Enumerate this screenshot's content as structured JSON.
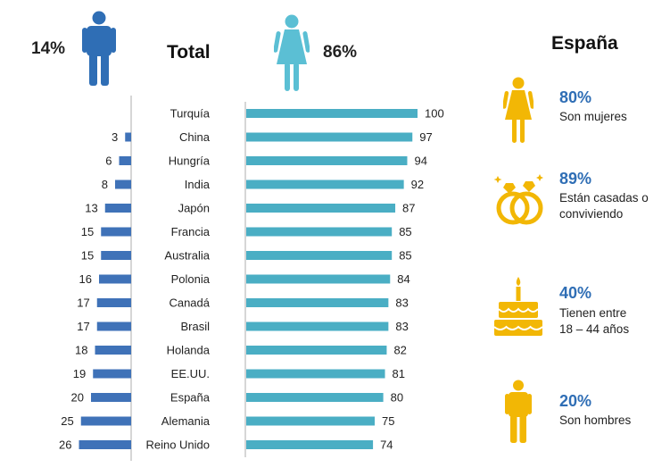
{
  "header": {
    "men_percent": "14%",
    "title": "Total",
    "women_percent": "86%"
  },
  "chart_data": {
    "type": "bar",
    "title": "Total",
    "categories": [
      "Turquía",
      "China",
      "Hungría",
      "India",
      "Japón",
      "Francia",
      "Australia",
      "Polonia",
      "Canadá",
      "Brasil",
      "Holanda",
      "EE.UU.",
      "España",
      "Alemania",
      "Reino Unido"
    ],
    "series": [
      {
        "name": "Hombres",
        "values": [
          null,
          3,
          6,
          8,
          13,
          15,
          15,
          16,
          17,
          17,
          18,
          19,
          20,
          25,
          26
        ]
      },
      {
        "name": "Mujeres",
        "values": [
          100,
          97,
          94,
          92,
          87,
          85,
          85,
          84,
          83,
          83,
          82,
          81,
          80,
          75,
          74
        ]
      }
    ],
    "xlim": [
      0,
      100
    ],
    "grid": false,
    "colors": {
      "men": "#3f72b8",
      "women": "#4aaec4"
    }
  },
  "colors": {
    "men_icon": "#2f6eb5",
    "women_icon": "#5bbfd4",
    "gold": "#f2b705",
    "accent": "#2f6eb5"
  },
  "spain": {
    "title": "España",
    "stats": [
      {
        "icon": "woman-icon",
        "percent": "80%",
        "lines": [
          "Son mujeres"
        ]
      },
      {
        "icon": "rings-icon",
        "percent": "89%",
        "lines": [
          "Están casadas o",
          "conviviendo"
        ]
      },
      {
        "icon": "cake-icon",
        "percent": "40%",
        "lines": [
          "Tienen entre",
          "18 – 44 años"
        ]
      },
      {
        "icon": "man-icon",
        "percent": "20%",
        "lines": [
          "Son hombres"
        ]
      }
    ]
  }
}
